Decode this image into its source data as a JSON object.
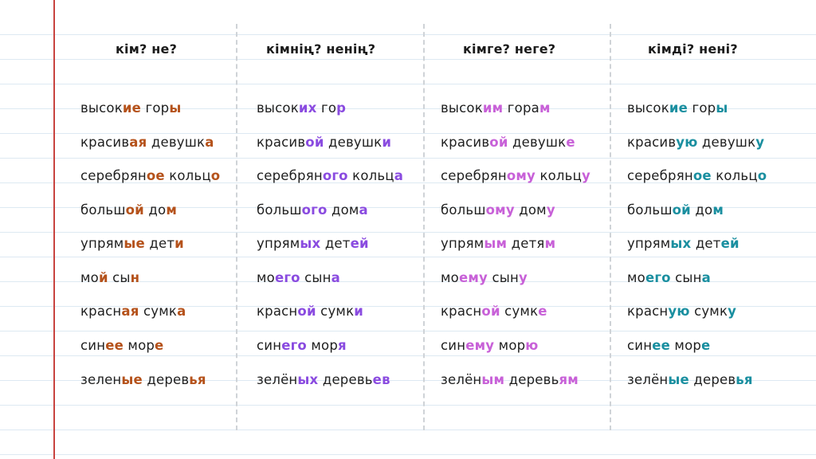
{
  "columns": [
    {
      "header": "кім? не?",
      "accent": "#b5521b",
      "rows": [
        [
          [
            "высок",
            0
          ],
          [
            "ие",
            1
          ],
          [
            " гор",
            0
          ],
          [
            "ы",
            1
          ]
        ],
        [
          [
            "красив",
            0
          ],
          [
            "ая",
            1
          ],
          [
            " девушк",
            0
          ],
          [
            "а",
            1
          ]
        ],
        [
          [
            "серебрян",
            0
          ],
          [
            "ое",
            1
          ],
          [
            " кольц",
            0
          ],
          [
            "о",
            1
          ]
        ],
        [
          [
            "больш",
            0
          ],
          [
            "ой",
            1
          ],
          [
            " до",
            0
          ],
          [
            "м",
            1
          ]
        ],
        [
          [
            "упрям",
            0
          ],
          [
            "ые",
            1
          ],
          [
            " дет",
            0
          ],
          [
            "и",
            1
          ]
        ],
        [
          [
            "мо",
            0
          ],
          [
            "й",
            1
          ],
          [
            " сы",
            0
          ],
          [
            "н",
            1
          ]
        ],
        [
          [
            "красн",
            0
          ],
          [
            "ая",
            1
          ],
          [
            " сумк",
            0
          ],
          [
            "а",
            1
          ]
        ],
        [
          [
            "син",
            0
          ],
          [
            "ее",
            1
          ],
          [
            " мор",
            0
          ],
          [
            "е",
            1
          ]
        ],
        [
          [
            "зелен",
            0
          ],
          [
            "ые",
            1
          ],
          [
            " дерев",
            0
          ],
          [
            "ья",
            1
          ]
        ]
      ]
    },
    {
      "header": "кімнің? ненің?",
      "accent": "#8a4be0",
      "rows": [
        [
          [
            "высок",
            0
          ],
          [
            "их",
            1
          ],
          [
            " го",
            0
          ],
          [
            "р",
            1
          ]
        ],
        [
          [
            "красив",
            0
          ],
          [
            "ой",
            1
          ],
          [
            " девушк",
            0
          ],
          [
            "и",
            1
          ]
        ],
        [
          [
            "серебрян",
            0
          ],
          [
            "ого",
            1
          ],
          [
            " кольц",
            0
          ],
          [
            "а",
            1
          ]
        ],
        [
          [
            "больш",
            0
          ],
          [
            "ого",
            1
          ],
          [
            " дом",
            0
          ],
          [
            "а",
            1
          ]
        ],
        [
          [
            "упрям",
            0
          ],
          [
            "ых",
            1
          ],
          [
            " дет",
            0
          ],
          [
            "ей",
            1
          ]
        ],
        [
          [
            "мо",
            0
          ],
          [
            "его",
            1
          ],
          [
            " сын",
            0
          ],
          [
            "а",
            1
          ]
        ],
        [
          [
            "красн",
            0
          ],
          [
            "ой",
            1
          ],
          [
            " сумк",
            0
          ],
          [
            "и",
            1
          ]
        ],
        [
          [
            "син",
            0
          ],
          [
            "его",
            1
          ],
          [
            " мор",
            0
          ],
          [
            "я",
            1
          ]
        ],
        [
          [
            "зелён",
            0
          ],
          [
            "ых",
            1
          ],
          [
            " деревь",
            0
          ],
          [
            "ев",
            1
          ]
        ]
      ]
    },
    {
      "header": "кімге? неге?",
      "accent": "#c861d8",
      "rows": [
        [
          [
            "высок",
            0
          ],
          [
            "им",
            1
          ],
          [
            " гора",
            0
          ],
          [
            "м",
            1
          ]
        ],
        [
          [
            "красив",
            0
          ],
          [
            "ой",
            1
          ],
          [
            " девушк",
            0
          ],
          [
            "е",
            1
          ]
        ],
        [
          [
            "серебрян",
            0
          ],
          [
            "ому",
            1
          ],
          [
            " кольц",
            0
          ],
          [
            "у",
            1
          ]
        ],
        [
          [
            "больш",
            0
          ],
          [
            "ому",
            1
          ],
          [
            " дом",
            0
          ],
          [
            "у",
            1
          ]
        ],
        [
          [
            "упрям",
            0
          ],
          [
            "ым",
            1
          ],
          [
            " детя",
            0
          ],
          [
            "м",
            1
          ]
        ],
        [
          [
            "мо",
            0
          ],
          [
            "ему",
            1
          ],
          [
            " сын",
            0
          ],
          [
            "у",
            1
          ]
        ],
        [
          [
            "красн",
            0
          ],
          [
            "ой",
            1
          ],
          [
            " сумк",
            0
          ],
          [
            "е",
            1
          ]
        ],
        [
          [
            "син",
            0
          ],
          [
            "ему",
            1
          ],
          [
            " мор",
            0
          ],
          [
            "ю",
            1
          ]
        ],
        [
          [
            "зелён",
            0
          ],
          [
            "ым",
            1
          ],
          [
            " деревь",
            0
          ],
          [
            "ям",
            1
          ]
        ]
      ]
    },
    {
      "header": "кімді? нені?",
      "accent": "#1a8fa0",
      "rows": [
        [
          [
            "высок",
            0
          ],
          [
            "ие",
            1
          ],
          [
            " гор",
            0
          ],
          [
            "ы",
            1
          ]
        ],
        [
          [
            "красив",
            0
          ],
          [
            "ую",
            1
          ],
          [
            " девушк",
            0
          ],
          [
            "у",
            1
          ]
        ],
        [
          [
            "серебрян",
            0
          ],
          [
            "ое",
            1
          ],
          [
            " кольц",
            0
          ],
          [
            "о",
            1
          ]
        ],
        [
          [
            "больш",
            0
          ],
          [
            "ой",
            1
          ],
          [
            " до",
            0
          ],
          [
            "м",
            1
          ]
        ],
        [
          [
            "упрям",
            0
          ],
          [
            "ых",
            1
          ],
          [
            " дет",
            0
          ],
          [
            "ей",
            1
          ]
        ],
        [
          [
            "мо",
            0
          ],
          [
            "его",
            1
          ],
          [
            " сын",
            0
          ],
          [
            "а",
            1
          ]
        ],
        [
          [
            "красн",
            0
          ],
          [
            "ую",
            1
          ],
          [
            " сумк",
            0
          ],
          [
            "у",
            1
          ]
        ],
        [
          [
            "син",
            0
          ],
          [
            "ее",
            1
          ],
          [
            " мор",
            0
          ],
          [
            "е",
            1
          ]
        ],
        [
          [
            "зелён",
            0
          ],
          [
            "ые",
            1
          ],
          [
            " дерев",
            0
          ],
          [
            "ья",
            1
          ]
        ]
      ]
    }
  ]
}
